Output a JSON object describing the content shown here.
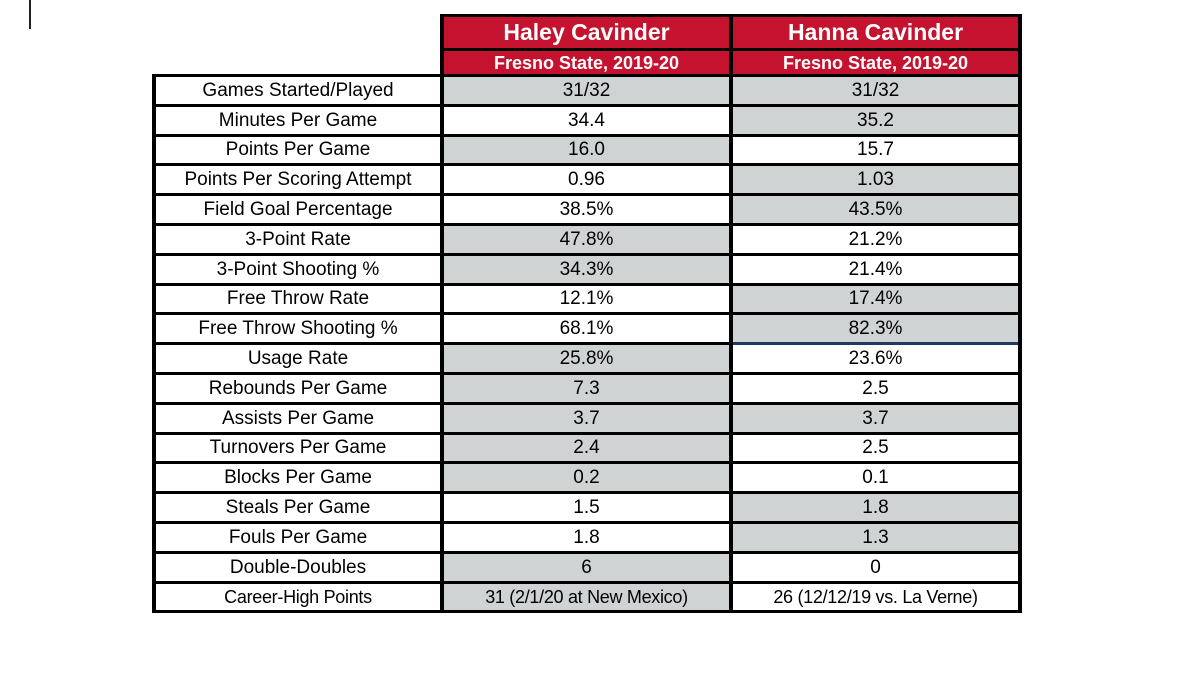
{
  "styles": {
    "header_red": "#C5132F",
    "shaded_cell_gray": "#D0D3D4",
    "border_black": "#000000",
    "accent_blue": "#1F3864",
    "header_text_white": "#FFFFFF",
    "body_text_black": "#000000"
  },
  "chart_data": {
    "type": "table",
    "columns": [
      {
        "name": "Haley Cavinder",
        "subtitle": "Fresno State, 2019-20"
      },
      {
        "name": "Hanna Cavinder",
        "subtitle": "Fresno State, 2019-20"
      }
    ],
    "rows": [
      {
        "label": "Games Started/Played",
        "haley": "31/32",
        "haley_shaded": true,
        "hanna": "31/32",
        "hanna_shaded": true
      },
      {
        "label": "Minutes Per Game",
        "haley": "34.4",
        "haley_shaded": false,
        "hanna": "35.2",
        "hanna_shaded": true
      },
      {
        "label": "Points Per Game",
        "haley": "16.0",
        "haley_shaded": true,
        "hanna": "15.7",
        "hanna_shaded": false
      },
      {
        "label": "Points Per Scoring Attempt",
        "haley": "0.96",
        "haley_shaded": false,
        "hanna": "1.03",
        "hanna_shaded": true
      },
      {
        "label": "Field Goal Percentage",
        "haley": "38.5%",
        "haley_shaded": false,
        "hanna": "43.5%",
        "hanna_shaded": true
      },
      {
        "label": "3-Point Rate",
        "haley": "47.8%",
        "haley_shaded": true,
        "hanna": "21.2%",
        "hanna_shaded": false
      },
      {
        "label": "3-Point Shooting %",
        "haley": "34.3%",
        "haley_shaded": true,
        "hanna": "21.4%",
        "hanna_shaded": false
      },
      {
        "label": "Free Throw Rate",
        "haley": "12.1%",
        "haley_shaded": false,
        "hanna": "17.4%",
        "hanna_shaded": true
      },
      {
        "label": "Free Throw Shooting %",
        "haley": "68.1%",
        "haley_shaded": false,
        "hanna": "82.3%",
        "hanna_shaded": true,
        "hanna_accent_border": true
      },
      {
        "label": "Usage Rate",
        "haley": "25.8%",
        "haley_shaded": true,
        "hanna": "23.6%",
        "hanna_shaded": false
      },
      {
        "label": "Rebounds Per Game",
        "haley": "7.3",
        "haley_shaded": true,
        "hanna": "2.5",
        "hanna_shaded": false
      },
      {
        "label": "Assists Per Game",
        "haley": "3.7",
        "haley_shaded": true,
        "hanna": "3.7",
        "hanna_shaded": true
      },
      {
        "label": "Turnovers Per Game",
        "haley": "2.4",
        "haley_shaded": true,
        "hanna": "2.5",
        "hanna_shaded": false
      },
      {
        "label": "Blocks Per Game",
        "haley": "0.2",
        "haley_shaded": true,
        "hanna": "0.1",
        "hanna_shaded": false
      },
      {
        "label": "Steals Per Game",
        "haley": "1.5",
        "haley_shaded": false,
        "hanna": "1.8",
        "hanna_shaded": true
      },
      {
        "label": "Fouls Per Game",
        "haley": "1.8",
        "haley_shaded": false,
        "hanna": "1.3",
        "hanna_shaded": true
      },
      {
        "label": "Double-Doubles",
        "haley": "6",
        "haley_shaded": true,
        "hanna": "0",
        "hanna_shaded": false
      },
      {
        "label": "Career-High Points",
        "haley": "31 (2/1/20 at New Mexico)",
        "haley_shaded": true,
        "hanna": "26 (12/12/19 vs. La Verne)",
        "hanna_shaded": false,
        "small_text": true
      }
    ]
  }
}
